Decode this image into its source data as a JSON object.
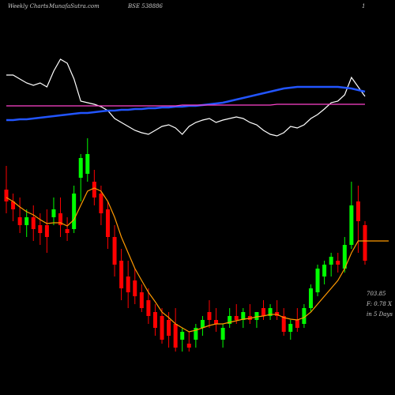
{
  "chart_data": {
    "type": "candlestick",
    "title": "Weekly Charts",
    "source": "MunafaSutra.com",
    "symbol": "BSE 538886",
    "page": "1",
    "annotations": [
      "703.85",
      "F: 0.78 X",
      "in 5 Days"
    ],
    "ylim": [
      0,
      500
    ],
    "up_color": "#00ff00",
    "down_color": "#ff0000",
    "ma_color": "#ff9900",
    "open": [
      260,
      245,
      225,
      215,
      225,
      215,
      215,
      225,
      230,
      210,
      210,
      275,
      280,
      270,
      255,
      235,
      200,
      170,
      150,
      145,
      130,
      120,
      105,
      100,
      95,
      90,
      70,
      65,
      70,
      85,
      105,
      95,
      70,
      90,
      100,
      95,
      100,
      95,
      110,
      100,
      105,
      100,
      80,
      95,
      90,
      110,
      130,
      150,
      165,
      170,
      160,
      190,
      245,
      215
    ],
    "high": [
      290,
      255,
      250,
      235,
      240,
      230,
      235,
      250,
      250,
      225,
      265,
      305,
      325,
      285,
      265,
      245,
      215,
      185,
      170,
      160,
      140,
      135,
      115,
      110,
      105,
      110,
      85,
      80,
      90,
      100,
      120,
      110,
      90,
      110,
      115,
      110,
      115,
      105,
      120,
      115,
      120,
      110,
      95,
      110,
      115,
      140,
      165,
      170,
      180,
      180,
      200,
      270,
      265,
      220
    ],
    "low": [
      230,
      220,
      205,
      200,
      195,
      190,
      180,
      215,
      200,
      195,
      205,
      245,
      270,
      240,
      215,
      185,
      150,
      120,
      110,
      115,
      105,
      90,
      75,
      65,
      60,
      55,
      55,
      55,
      60,
      75,
      85,
      80,
      60,
      85,
      90,
      85,
      90,
      85,
      95,
      95,
      95,
      75,
      70,
      80,
      85,
      105,
      125,
      140,
      150,
      155,
      155,
      185,
      180,
      165
    ],
    "close": [
      245,
      235,
      215,
      225,
      210,
      205,
      200,
      235,
      215,
      205,
      255,
      300,
      305,
      250,
      230,
      200,
      165,
      135,
      130,
      125,
      110,
      100,
      85,
      70,
      75,
      60,
      80,
      60,
      85,
      95,
      95,
      90,
      85,
      100,
      95,
      105,
      95,
      105,
      100,
      110,
      100,
      80,
      90,
      85,
      110,
      135,
      160,
      165,
      175,
      165,
      190,
      240,
      220,
      170
    ],
    "ma": [
      250,
      245,
      238,
      232,
      228,
      222,
      217,
      218,
      218,
      214,
      222,
      240,
      258,
      262,
      258,
      245,
      225,
      200,
      180,
      160,
      145,
      130,
      118,
      105,
      98,
      90,
      85,
      80,
      82,
      85,
      88,
      90,
      90,
      92,
      94,
      96,
      97,
      99,
      100,
      102,
      102,
      98,
      96,
      95,
      98,
      105,
      115,
      125,
      135,
      145,
      160,
      180,
      195,
      195
    ],
    "series": [
      {
        "name": "indicator",
        "color": "#ffffff",
        "values": [
          405,
          405,
          400,
          395,
          392,
          395,
          390,
          410,
          425,
          420,
          400,
          372,
          370,
          368,
          365,
          360,
          350,
          345,
          340,
          335,
          332,
          330,
          335,
          340,
          342,
          338,
          330,
          340,
          345,
          348,
          350,
          345,
          348,
          350,
          352,
          350,
          345,
          342,
          335,
          330,
          328,
          332,
          340,
          338,
          342,
          350,
          355,
          362,
          370,
          372,
          380,
          402,
          390,
          378
        ]
      },
      {
        "name": "trend",
        "color": "#2255ff",
        "values": [
          348,
          348,
          349,
          349,
          350,
          351,
          352,
          353,
          354,
          355,
          356,
          357,
          357,
          358,
          359,
          360,
          360,
          361,
          361,
          362,
          362,
          363,
          363,
          364,
          364,
          365,
          365,
          366,
          366,
          367,
          368,
          369,
          370,
          372,
          374,
          376,
          378,
          380,
          382,
          384,
          386,
          388,
          389,
          390,
          390,
          390,
          390,
          390,
          390,
          390,
          389,
          388,
          386,
          384
        ]
      },
      {
        "name": "signal",
        "color": "#ff44cc",
        "values": [
          366,
          366,
          366,
          366,
          366,
          366,
          366,
          366,
          366,
          366,
          366,
          366,
          366,
          366,
          366,
          366,
          366,
          366,
          366,
          366,
          366,
          366,
          366,
          366,
          366,
          366,
          367,
          367,
          367,
          367,
          367,
          367,
          367,
          367,
          367,
          367,
          367,
          367,
          367,
          367,
          368,
          368,
          368,
          368,
          368,
          368,
          368,
          368,
          368,
          368,
          368,
          368,
          368,
          368
        ]
      }
    ]
  }
}
